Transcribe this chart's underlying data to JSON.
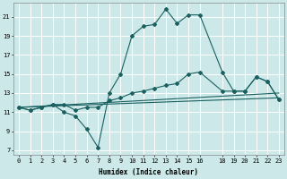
{
  "xlabel": "Humidex (Indice chaleur)",
  "background_color": "#cce8e8",
  "grid_color": "#ffffff",
  "line_color": "#1a6060",
  "xlim": [
    -0.5,
    23.5
  ],
  "ylim": [
    6.5,
    22.5
  ],
  "yticks": [
    7,
    9,
    11,
    13,
    15,
    17,
    19,
    21
  ],
  "xticks": [
    0,
    1,
    2,
    3,
    4,
    5,
    6,
    7,
    8,
    9,
    10,
    11,
    12,
    13,
    14,
    15,
    16,
    18,
    19,
    20,
    21,
    22,
    23
  ],
  "line1_x": [
    0,
    1,
    2,
    3,
    4,
    5,
    6,
    7,
    8,
    9,
    10,
    11,
    12,
    13,
    14,
    15,
    16,
    18,
    19,
    20,
    21,
    22,
    23
  ],
  "line1_y": [
    11.5,
    11.2,
    11.5,
    11.8,
    11.0,
    10.6,
    9.2,
    7.3,
    13.0,
    15.0,
    19.0,
    20.0,
    20.2,
    21.8,
    20.3,
    21.2,
    21.2,
    15.2,
    13.2,
    13.2,
    14.7,
    14.2,
    12.3
  ],
  "line2_x": [
    0,
    1,
    2,
    3,
    4,
    5,
    6,
    7,
    8,
    9,
    10,
    11,
    12,
    13,
    14,
    15,
    16,
    18,
    19,
    20,
    21,
    22,
    23
  ],
  "line2_y": [
    11.5,
    11.2,
    11.5,
    11.8,
    11.8,
    11.2,
    11.5,
    11.5,
    12.2,
    12.5,
    13.0,
    13.2,
    13.5,
    13.8,
    14.0,
    15.0,
    15.2,
    13.2,
    13.2,
    13.2,
    14.7,
    14.2,
    12.3
  ],
  "line3_x": [
    0,
    23
  ],
  "line3_y": [
    11.5,
    13.0
  ],
  "line4_x": [
    0,
    23
  ],
  "line4_y": [
    11.5,
    12.5
  ]
}
